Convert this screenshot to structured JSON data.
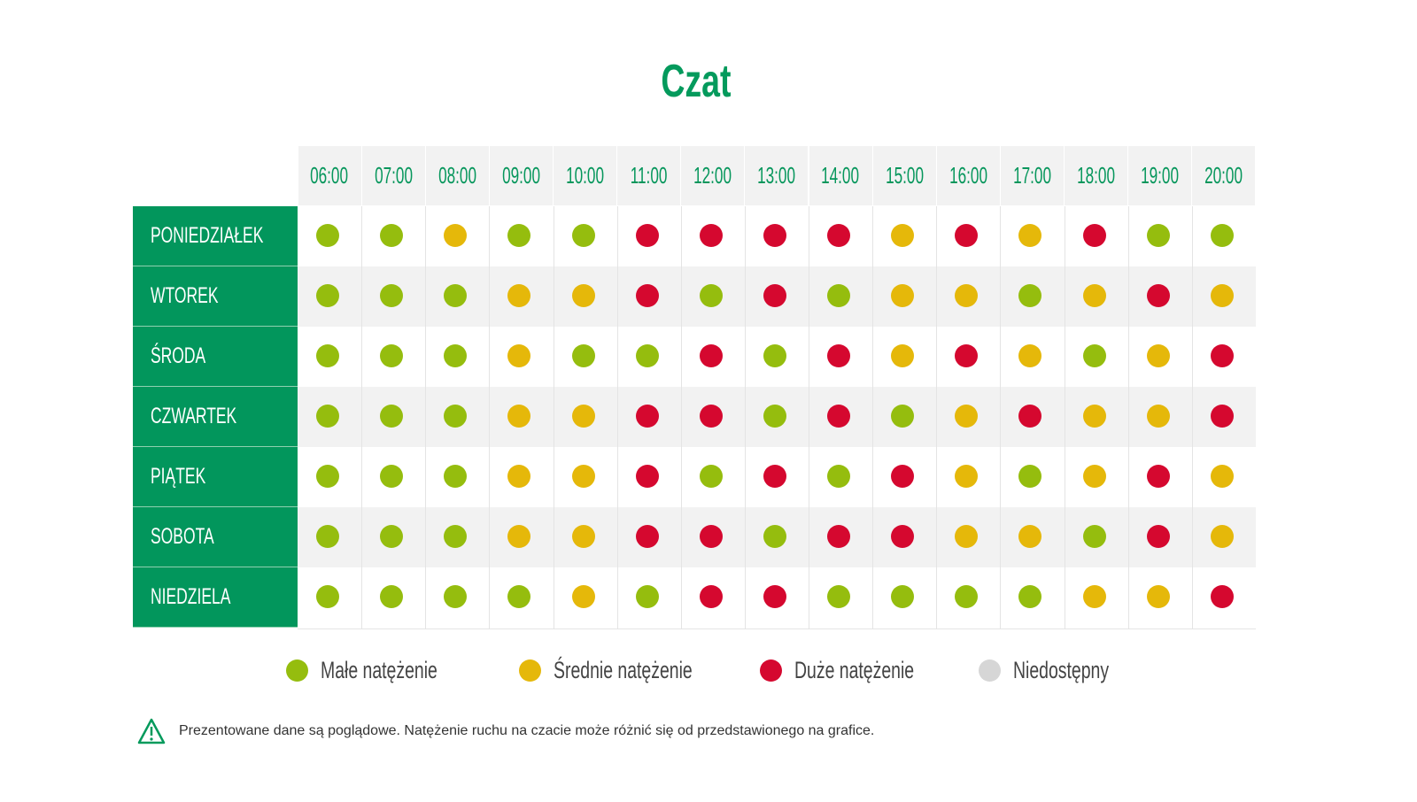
{
  "title": "Czat",
  "colors": {
    "header": "#02965c",
    "low": "#95bd0e",
    "medium": "#e5b80a",
    "high": "#d5082f",
    "unavailable": "#d6d6d6"
  },
  "chart_data": {
    "type": "heatmap",
    "title": "Czat",
    "columns": [
      "06:00",
      "07:00",
      "08:00",
      "09:00",
      "10:00",
      "11:00",
      "12:00",
      "13:00",
      "14:00",
      "15:00",
      "16:00",
      "17:00",
      "18:00",
      "19:00",
      "20:00"
    ],
    "rows": [
      "PONIEDZIAŁEK",
      "WTOREK",
      "ŚRODA",
      "CZWARTEK",
      "PIĄTEK",
      "SOBOTA",
      "NIEDZIELA"
    ],
    "levels": {
      "G": "low",
      "Y": "medium",
      "R": "high",
      "N": "unavailable"
    },
    "values": [
      [
        "G",
        "G",
        "Y",
        "G",
        "G",
        "R",
        "R",
        "R",
        "R",
        "Y",
        "R",
        "Y",
        "R",
        "G",
        "G"
      ],
      [
        "G",
        "G",
        "G",
        "Y",
        "Y",
        "R",
        "G",
        "R",
        "G",
        "Y",
        "Y",
        "G",
        "Y",
        "R",
        "Y"
      ],
      [
        "G",
        "G",
        "G",
        "Y",
        "G",
        "G",
        "R",
        "G",
        "R",
        "Y",
        "R",
        "Y",
        "G",
        "Y",
        "R"
      ],
      [
        "G",
        "G",
        "G",
        "Y",
        "Y",
        "R",
        "R",
        "G",
        "R",
        "G",
        "Y",
        "R",
        "Y",
        "Y",
        "R"
      ],
      [
        "G",
        "G",
        "G",
        "Y",
        "Y",
        "R",
        "G",
        "R",
        "G",
        "R",
        "Y",
        "G",
        "Y",
        "R",
        "Y"
      ],
      [
        "G",
        "G",
        "G",
        "Y",
        "Y",
        "R",
        "R",
        "G",
        "R",
        "R",
        "Y",
        "Y",
        "G",
        "R",
        "Y"
      ],
      [
        "G",
        "G",
        "G",
        "G",
        "Y",
        "G",
        "R",
        "R",
        "G",
        "G",
        "G",
        "G",
        "Y",
        "Y",
        "R"
      ]
    ],
    "legend": [
      {
        "level": "low",
        "label": "Małe natężenie"
      },
      {
        "level": "medium",
        "label": "Średnie natężenie"
      },
      {
        "level": "high",
        "label": "Duże natężenie"
      },
      {
        "level": "unavailable",
        "label": "Niedostępny"
      }
    ]
  },
  "note": "Prezentowane dane są poglądowe. Natężenie ruchu na czacie może różnić się od przedstawionego na grafice."
}
